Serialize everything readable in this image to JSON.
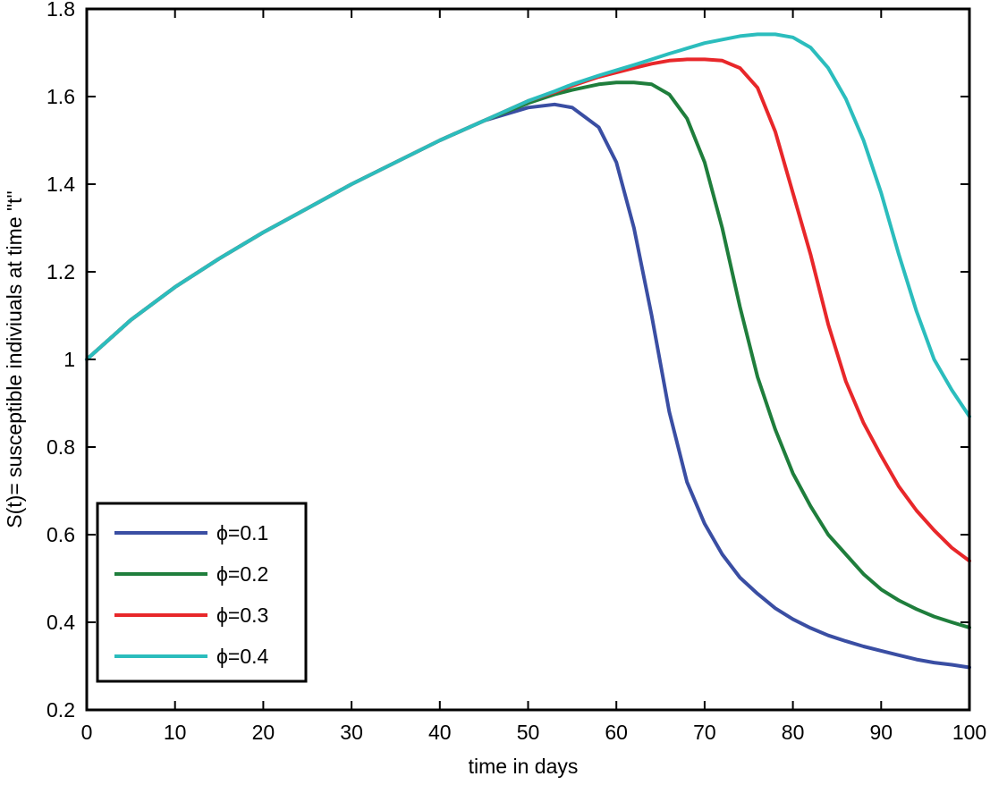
{
  "chart_data": {
    "type": "line",
    "title": "",
    "xlabel": "time in days",
    "ylabel": "S(t)= susceptible indiviuals at time \"t\"",
    "xlim": [
      0,
      100
    ],
    "ylim": [
      0.2,
      1.8
    ],
    "x_ticks": [
      0,
      10,
      20,
      30,
      40,
      50,
      60,
      70,
      80,
      90,
      100
    ],
    "x_tick_labels": [
      "0",
      "10",
      "20",
      "30",
      "40",
      "50",
      "60",
      "70",
      "80",
      "90",
      "100"
    ],
    "y_ticks": [
      0.2,
      0.4,
      0.6,
      0.8,
      1.0,
      1.2,
      1.4,
      1.6,
      1.8
    ],
    "y_tick_labels": [
      "0.2",
      "0.4",
      "0.6",
      "0.8",
      "1",
      "1.2",
      "1.4",
      "1.6",
      "1.8"
    ],
    "grid": false,
    "legend_position": "bottom-left",
    "x": [
      0,
      5,
      10,
      15,
      20,
      25,
      30,
      35,
      40,
      45,
      50,
      53,
      55,
      58,
      60,
      62,
      64,
      66,
      68,
      70,
      72,
      74,
      76,
      78,
      80,
      82,
      84,
      86,
      88,
      90,
      92,
      94,
      96,
      98,
      100
    ],
    "series": [
      {
        "name": "ϕ=0.1",
        "color": "#3a4ea3",
        "values": [
          1.0,
          1.09,
          1.165,
          1.23,
          1.29,
          1.345,
          1.4,
          1.45,
          1.5,
          1.545,
          1.575,
          1.582,
          1.575,
          1.53,
          1.45,
          1.3,
          1.1,
          0.88,
          0.72,
          0.625,
          0.555,
          0.502,
          0.465,
          0.432,
          0.407,
          0.387,
          0.37,
          0.357,
          0.345,
          0.335,
          0.325,
          0.315,
          0.308,
          0.303,
          0.297
        ]
      },
      {
        "name": "ϕ=0.2",
        "color": "#1f7e3c",
        "values": [
          1.0,
          1.09,
          1.165,
          1.23,
          1.29,
          1.345,
          1.4,
          1.45,
          1.5,
          1.545,
          1.585,
          1.605,
          1.615,
          1.628,
          1.632,
          1.632,
          1.628,
          1.605,
          1.55,
          1.45,
          1.3,
          1.12,
          0.96,
          0.84,
          0.74,
          0.665,
          0.6,
          0.555,
          0.51,
          0.475,
          0.45,
          0.43,
          0.413,
          0.4,
          0.388
        ]
      },
      {
        "name": "ϕ=0.3",
        "color": "#e8272a",
        "values": [
          1.0,
          1.09,
          1.165,
          1.23,
          1.29,
          1.345,
          1.4,
          1.45,
          1.5,
          1.545,
          1.59,
          1.61,
          1.625,
          1.645,
          1.655,
          1.665,
          1.675,
          1.682,
          1.685,
          1.685,
          1.682,
          1.665,
          1.62,
          1.52,
          1.38,
          1.24,
          1.08,
          0.95,
          0.855,
          0.78,
          0.71,
          0.655,
          0.61,
          0.57,
          0.54
        ]
      },
      {
        "name": "ϕ=0.4",
        "color": "#2bbdbd",
        "values": [
          1.0,
          1.09,
          1.165,
          1.23,
          1.29,
          1.345,
          1.4,
          1.45,
          1.5,
          1.545,
          1.59,
          1.612,
          1.628,
          1.648,
          1.66,
          1.672,
          1.685,
          1.698,
          1.71,
          1.722,
          1.73,
          1.738,
          1.742,
          1.742,
          1.735,
          1.712,
          1.665,
          1.595,
          1.5,
          1.38,
          1.24,
          1.11,
          1.0,
          0.93,
          0.87
        ]
      }
    ]
  }
}
